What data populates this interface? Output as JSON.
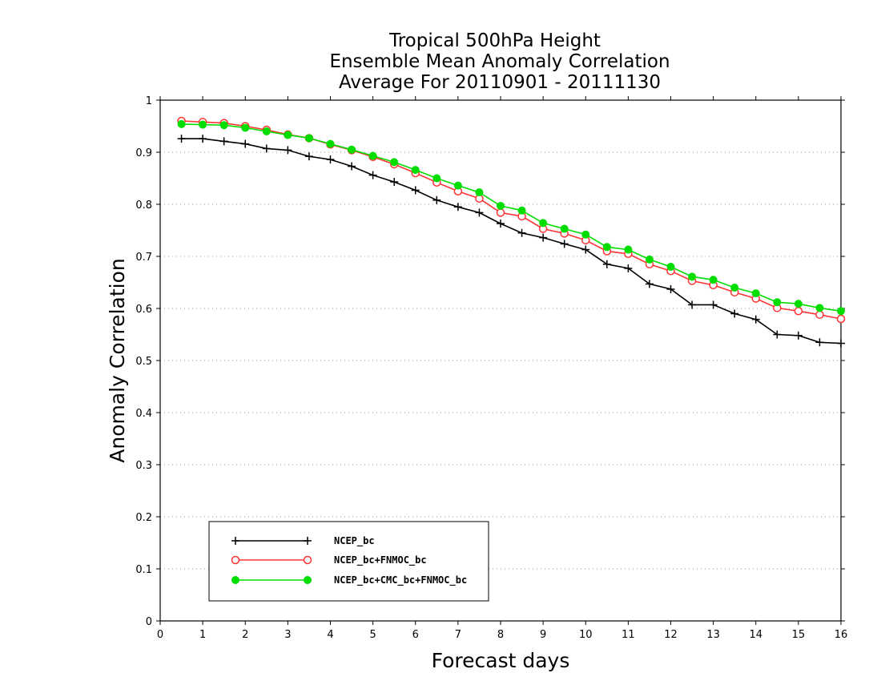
{
  "chart_data": {
    "type": "line",
    "title": [
      "Tropical 500hPa Height",
      "Ensemble Mean Anomaly Correlation",
      "Average For 20110901 - 20111130"
    ],
    "xlabel": "Forecast days",
    "ylabel": "Anomaly Correlation",
    "xlim": [
      0,
      16
    ],
    "ylim": [
      0,
      1
    ],
    "xticks": [
      "0",
      "1",
      "2",
      "3",
      "4",
      "5",
      "6",
      "7",
      "8",
      "9",
      "10",
      "11",
      "12",
      "13",
      "14",
      "15",
      "16"
    ],
    "yticks": [
      "0",
      "0.1",
      "0.2",
      "0.3",
      "0.4",
      "0.5",
      "0.6",
      "0.7",
      "0.8",
      "0.9",
      "1"
    ],
    "grid": "horizontal dotted",
    "legend_position": "bottom-left",
    "x": [
      0.5,
      1,
      1.5,
      2,
      2.5,
      3,
      3.5,
      4,
      4.5,
      5,
      5.5,
      6,
      6.5,
      7,
      7.5,
      8,
      8.5,
      9,
      9.5,
      10,
      10.5,
      11,
      11.5,
      12,
      12.5,
      13,
      13.5,
      14,
      14.5,
      15,
      15.5,
      16
    ],
    "series": [
      {
        "name": "NCEP_bc",
        "color": "#000000",
        "marker": "plus",
        "values": [
          0.926,
          0.926,
          0.921,
          0.916,
          0.907,
          0.904,
          0.892,
          0.886,
          0.873,
          0.856,
          0.843,
          0.827,
          0.808,
          0.795,
          0.784,
          0.763,
          0.745,
          0.736,
          0.724,
          0.713,
          0.685,
          0.677,
          0.647,
          0.637,
          0.607,
          0.607,
          0.59,
          0.579,
          0.55,
          0.548,
          0.535,
          0.533
        ]
      },
      {
        "name": "NCEP_bc+FNMOC_bc",
        "color": "#ff3333",
        "marker": "open-circle",
        "values": [
          0.96,
          0.958,
          0.956,
          0.95,
          0.943,
          0.934,
          0.927,
          0.915,
          0.904,
          0.891,
          0.877,
          0.86,
          0.842,
          0.825,
          0.811,
          0.784,
          0.777,
          0.753,
          0.744,
          0.731,
          0.71,
          0.705,
          0.685,
          0.672,
          0.653,
          0.645,
          0.631,
          0.619,
          0.601,
          0.595,
          0.588,
          0.58
        ]
      },
      {
        "name": "NCEP_bc+CMC_bc+FNMOC_bc",
        "color": "#00dd00",
        "marker": "filled-circle",
        "values": [
          0.954,
          0.953,
          0.952,
          0.947,
          0.94,
          0.933,
          0.927,
          0.916,
          0.905,
          0.893,
          0.881,
          0.866,
          0.85,
          0.836,
          0.823,
          0.797,
          0.788,
          0.764,
          0.753,
          0.742,
          0.718,
          0.713,
          0.694,
          0.68,
          0.661,
          0.655,
          0.64,
          0.629,
          0.612,
          0.609,
          0.601,
          0.595
        ]
      }
    ]
  }
}
